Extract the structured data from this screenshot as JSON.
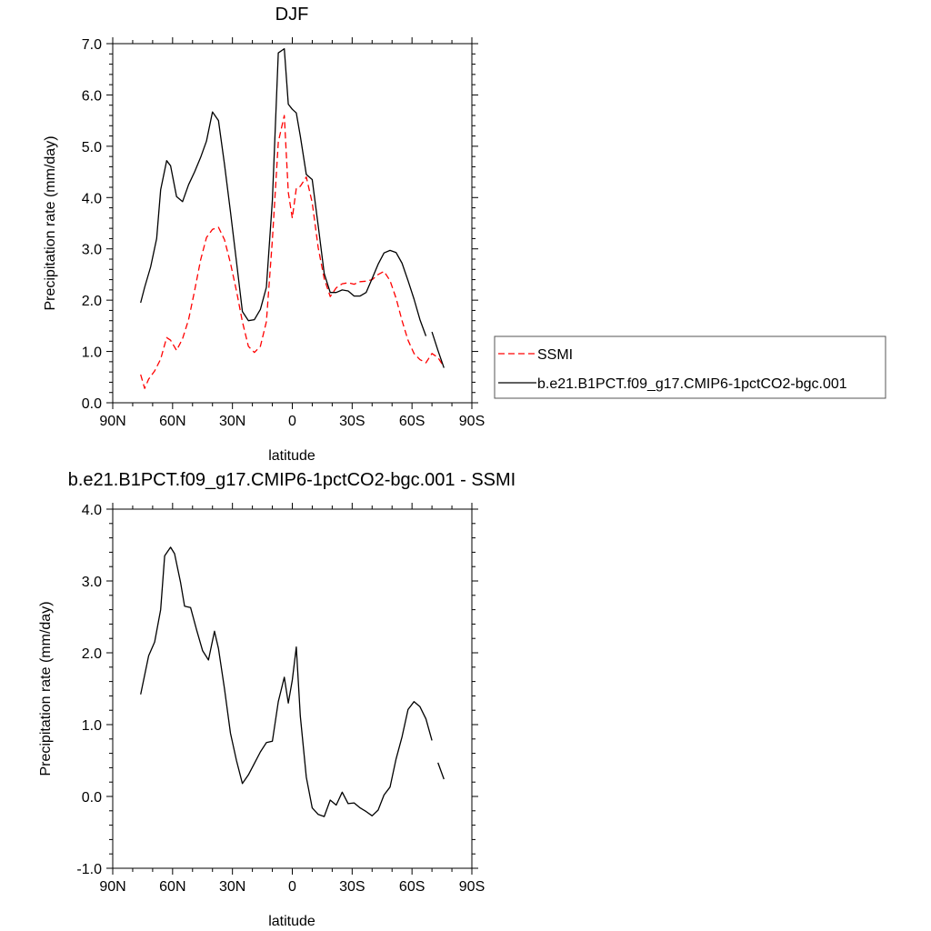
{
  "chart_data": [
    {
      "type": "line",
      "title": "DJF",
      "xlabel": "latitude",
      "ylabel": "Precipitation rate (mm/day)",
      "xlim": [
        90,
        -90
      ],
      "ylim": [
        0,
        7
      ],
      "x_ticks": [
        90,
        60,
        30,
        0,
        -30,
        -60,
        -90
      ],
      "x_tick_labels": [
        "90N",
        "60N",
        "30N",
        "0",
        "30S",
        "60S",
        "90S"
      ],
      "y_ticks": [
        0,
        1,
        2,
        3,
        4,
        5,
        6,
        7
      ],
      "y_tick_labels": [
        "0.0",
        "1.0",
        "2.0",
        "3.0",
        "4.0",
        "5.0",
        "6.0",
        "7.0"
      ],
      "grid": false,
      "legend_position": "right",
      "series": [
        {
          "name": "SSMI",
          "color": "#ff0000",
          "style": "dashed",
          "x": [
            76,
            74,
            72,
            69,
            66,
            63,
            61,
            58,
            55,
            52,
            49,
            46,
            43,
            40,
            37,
            34,
            31,
            28,
            25,
            22,
            19,
            16,
            13,
            10,
            7,
            4,
            2,
            0,
            -2,
            -4,
            -7,
            -10,
            -13,
            -16,
            -19,
            -22,
            -25,
            -28,
            -31,
            -34,
            -37,
            -40,
            -43,
            -46,
            -49,
            -52,
            -55,
            -58,
            -61,
            -64,
            -67,
            -70,
            -73,
            -76
          ],
          "y": [
            0.55,
            0.28,
            0.46,
            0.62,
            0.85,
            1.27,
            1.22,
            1.02,
            1.25,
            1.62,
            2.18,
            2.78,
            3.22,
            3.38,
            3.42,
            3.18,
            2.72,
            2.18,
            1.58,
            1.1,
            0.98,
            1.1,
            1.58,
            3.18,
            5.08,
            5.6,
            4.1,
            3.6,
            4.18,
            4.22,
            4.4,
            3.9,
            3.02,
            2.42,
            2.07,
            2.24,
            2.32,
            2.34,
            2.31,
            2.36,
            2.37,
            2.4,
            2.5,
            2.56,
            2.38,
            2.04,
            1.6,
            1.22,
            0.96,
            0.84,
            0.78,
            0.96,
            0.88,
            0.7
          ]
        },
        {
          "name": "b.e21.B1PCT.f09_g17.CMIP6-1pctCO2-bgc.001",
          "color": "#000000",
          "style": "solid",
          "x": [
            76,
            74,
            71,
            68,
            66,
            63,
            61,
            58,
            55,
            52,
            49,
            46,
            43,
            40,
            37,
            34,
            31,
            28,
            25,
            22,
            19,
            16,
            13,
            10,
            7,
            4,
            2,
            0,
            -2,
            -4,
            -7,
            -10,
            -13,
            -16,
            -19,
            -22,
            -25,
            -28,
            -31,
            -34,
            -37,
            -40,
            -43,
            -46,
            -49,
            -52,
            -55,
            -58,
            -61,
            -64,
            -67,
            null,
            -70,
            -73,
            -76
          ],
          "y": [
            1.95,
            2.25,
            2.65,
            3.2,
            4.15,
            4.72,
            4.62,
            4.02,
            3.92,
            4.25,
            4.5,
            4.78,
            5.1,
            5.67,
            5.5,
            4.65,
            3.72,
            2.75,
            1.78,
            1.6,
            1.62,
            1.82,
            2.25,
            3.95,
            6.82,
            6.9,
            5.82,
            5.72,
            5.65,
            5.2,
            4.45,
            4.35,
            3.45,
            2.52,
            2.15,
            2.15,
            2.2,
            2.18,
            2.08,
            2.08,
            2.15,
            2.42,
            2.7,
            2.92,
            2.97,
            2.93,
            2.72,
            2.38,
            2.02,
            1.62,
            1.3,
            null,
            1.38,
            1.02,
            0.68
          ]
        }
      ]
    },
    {
      "type": "line",
      "title": "b.e21.B1PCT.f09_g17.CMIP6-1pctCO2-bgc.001 - SSMI",
      "xlabel": "latitude",
      "ylabel": "Precipitation rate (mm/day)",
      "xlim": [
        90,
        -90
      ],
      "ylim": [
        -1,
        4
      ],
      "x_ticks": [
        90,
        60,
        30,
        0,
        -30,
        -60,
        -90
      ],
      "x_tick_labels": [
        "90N",
        "60N",
        "30N",
        "0",
        "30S",
        "60S",
        "90S"
      ],
      "y_ticks": [
        -1,
        0,
        1,
        2,
        3,
        4
      ],
      "y_tick_labels": [
        "-1.0",
        "0.0",
        "1.0",
        "2.0",
        "3.0",
        "4.0"
      ],
      "grid": false,
      "series": [
        {
          "color": "#000000",
          "style": "solid",
          "x": [
            76,
            72,
            69,
            66,
            64,
            61,
            59,
            56,
            54,
            51,
            48,
            45,
            42,
            39,
            37,
            34,
            31,
            28,
            25,
            22,
            19,
            16,
            13,
            10,
            7,
            4,
            2,
            0,
            -2,
            -4,
            -7,
            -10,
            -13,
            -16,
            -19,
            -22,
            -25,
            -28,
            -31,
            -34,
            -37,
            -40,
            -43,
            -46,
            -49,
            -52,
            -55,
            -58,
            -61,
            -64,
            -67,
            -70,
            null,
            -73,
            -76
          ],
          "y": [
            1.42,
            1.96,
            2.15,
            2.6,
            3.35,
            3.47,
            3.38,
            2.98,
            2.65,
            2.63,
            2.32,
            2.03,
            1.9,
            2.3,
            2.06,
            1.5,
            0.88,
            0.5,
            0.18,
            0.3,
            0.46,
            0.62,
            0.75,
            0.77,
            1.32,
            1.66,
            1.3,
            1.62,
            2.08,
            1.12,
            0.27,
            -0.16,
            -0.25,
            -0.28,
            -0.05,
            -0.12,
            0.06,
            -0.1,
            -0.09,
            -0.16,
            -0.21,
            -0.27,
            -0.19,
            0.02,
            0.13,
            0.52,
            0.83,
            1.21,
            1.32,
            1.25,
            1.08,
            0.78,
            null,
            0.47,
            0.24
          ]
        }
      ]
    }
  ],
  "legend": {
    "items": [
      {
        "label": "SSMI",
        "color": "#ff0000",
        "style": "dashed"
      },
      {
        "label": "b.e21.B1PCT.f09_g17.CMIP6-1pctCO2-bgc.001",
        "color": "#000000",
        "style": "solid"
      }
    ]
  }
}
